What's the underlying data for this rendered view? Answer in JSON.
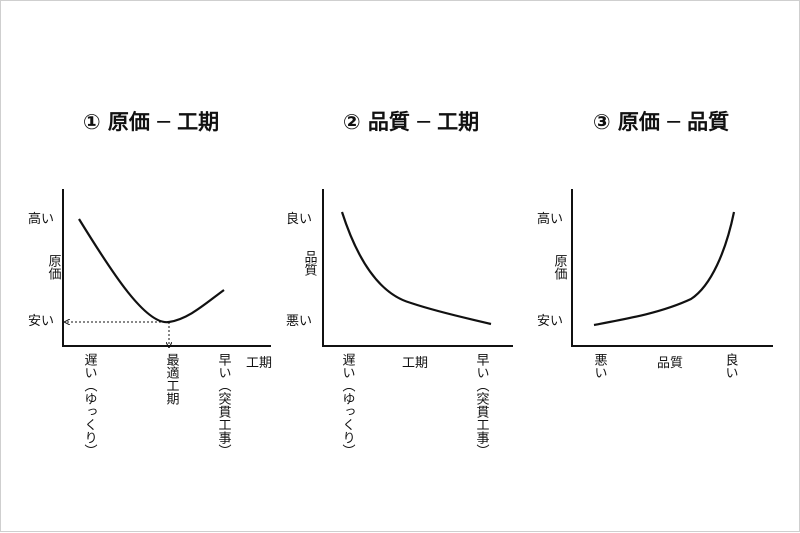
{
  "panels": [
    {
      "title": "① 原価 ─ 工期",
      "y_top_label": "高い",
      "y_mid_label": "原価",
      "y_bottom_label": "安い",
      "x_left_label": "遅い（ゆっくり）",
      "x_mid_label": "最適工期",
      "x_right_label": "早い（突貫工事）",
      "x_axis_label": "工期"
    },
    {
      "title": "② 品質 ─ 工期",
      "y_top_label": "良い",
      "y_mid_label": "品質",
      "y_bottom_label": "悪い",
      "x_left_label": "遅い（ゆっくり）",
      "x_mid_label": "工期",
      "x_right_label": "早い（突貫工事）"
    },
    {
      "title": "③ 原価 ─ 品質",
      "y_top_label": "高い",
      "y_mid_label": "原価",
      "y_bottom_label": "安い",
      "x_left_label": "悪い",
      "x_mid_label": "品質",
      "x_right_label": "良い"
    }
  ]
}
